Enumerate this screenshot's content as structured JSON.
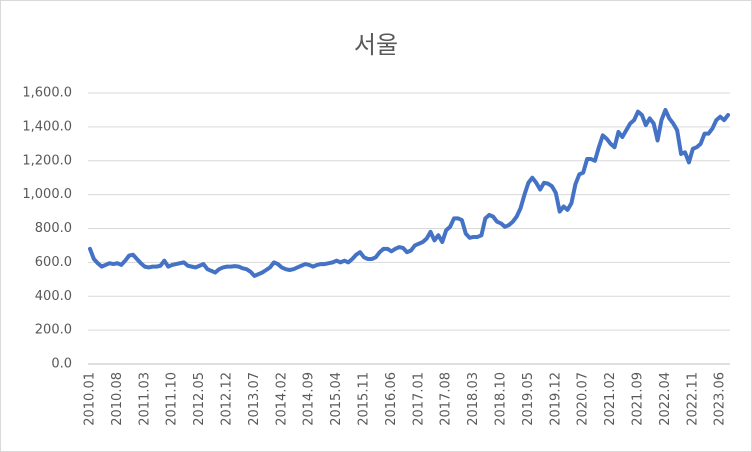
{
  "chart_data": {
    "type": "line",
    "title": "서울",
    "categories": [
      "2010.01",
      null,
      null,
      null,
      null,
      null,
      null,
      "2010.08",
      null,
      null,
      null,
      null,
      null,
      null,
      "2011.03",
      null,
      null,
      null,
      null,
      null,
      null,
      "2011.10",
      null,
      null,
      null,
      null,
      null,
      null,
      "2012.05",
      null,
      null,
      null,
      null,
      null,
      null,
      "2012.12",
      null,
      null,
      null,
      null,
      null,
      null,
      "2013.07",
      null,
      null,
      null,
      null,
      null,
      null,
      "2014.02",
      null,
      null,
      null,
      null,
      null,
      null,
      "2014.09",
      null,
      null,
      null,
      null,
      null,
      null,
      "2015.04",
      null,
      null,
      null,
      null,
      null,
      null,
      "2015.11",
      null,
      null,
      null,
      null,
      null,
      null,
      "2016.06",
      null,
      null,
      null,
      null,
      null,
      null,
      "2017.01",
      null,
      null,
      null,
      null,
      null,
      null,
      "2017.08",
      null,
      null,
      null,
      null,
      null,
      null,
      "2018.03",
      null,
      null,
      null,
      null,
      null,
      null,
      "2018.10",
      null,
      null,
      null,
      null,
      null,
      null,
      "2019.05",
      null,
      null,
      null,
      null,
      null,
      null,
      "2019.12",
      null,
      null,
      null,
      null,
      null,
      null,
      "2020.07",
      null,
      null,
      null,
      null,
      null,
      null,
      "2021.02",
      null,
      null,
      null,
      null,
      null,
      null,
      "2021.09",
      null,
      null,
      null,
      null,
      null,
      null,
      "2022.04",
      null,
      null,
      null,
      null,
      null,
      null,
      "2022.11",
      null,
      null,
      null,
      null,
      null,
      null,
      "2023.06",
      null,
      null
    ],
    "series": [
      {
        "name": "서울",
        "color": "#4472c4",
        "values": [
          680,
          620,
          595,
          575,
          585,
          595,
          590,
          595,
          585,
          610,
          640,
          645,
          620,
          595,
          575,
          570,
          575,
          575,
          580,
          610,
          575,
          585,
          590,
          595,
          600,
          580,
          575,
          570,
          580,
          590,
          560,
          550,
          540,
          560,
          570,
          575,
          575,
          578,
          575,
          565,
          560,
          545,
          520,
          530,
          540,
          555,
          570,
          600,
          590,
          570,
          560,
          555,
          560,
          570,
          580,
          590,
          585,
          575,
          585,
          590,
          590,
          595,
          600,
          610,
          600,
          610,
          600,
          620,
          645,
          660,
          630,
          620,
          620,
          630,
          660,
          680,
          680,
          665,
          680,
          690,
          685,
          660,
          670,
          700,
          710,
          720,
          740,
          780,
          730,
          760,
          720,
          790,
          810,
          860,
          860,
          850,
          770,
          745,
          750,
          750,
          760,
          860,
          880,
          870,
          840,
          830,
          810,
          820,
          840,
          870,
          920,
          1000,
          1070,
          1100,
          1070,
          1030,
          1070,
          1065,
          1050,
          1010,
          900,
          930,
          910,
          950,
          1060,
          1120,
          1130,
          1210,
          1210,
          1200,
          1280,
          1350,
          1330,
          1300,
          1280,
          1370,
          1340,
          1380,
          1420,
          1440,
          1490,
          1470,
          1410,
          1450,
          1420,
          1320,
          1440,
          1500,
          1450,
          1420,
          1380,
          1240,
          1250,
          1190,
          1270,
          1280,
          1300,
          1360,
          1360,
          1390,
          1440,
          1460,
          1440,
          1470
        ]
      }
    ],
    "ylim": [
      0,
      1600
    ],
    "yticks": [
      {
        "value": 0,
        "label": "0.0"
      },
      {
        "value": 200,
        "label": "200.0"
      },
      {
        "value": 400,
        "label": "400.0"
      },
      {
        "value": 600,
        "label": "600.0"
      },
      {
        "value": 800,
        "label": "800.0"
      },
      {
        "value": 1000,
        "label": "1,000.0"
      },
      {
        "value": 1200,
        "label": "1,200.0"
      },
      {
        "value": 1400,
        "label": "1,400.0"
      },
      {
        "value": 1600,
        "label": "1,600.0"
      }
    ],
    "grid": true
  }
}
